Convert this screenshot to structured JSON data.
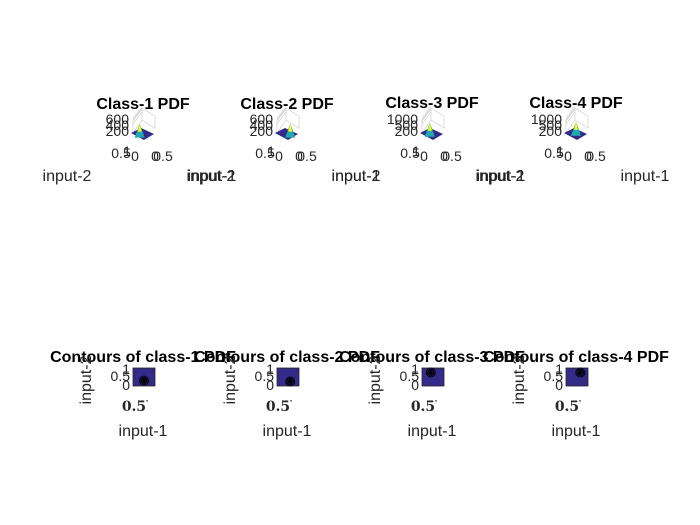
{
  "chart_data": [
    {
      "type": "surface",
      "title": "Class-1 PDF",
      "xlabel": "input-1",
      "ylabel": "input-2",
      "z_ticks": [
        "600",
        "400",
        "200"
      ],
      "x_ticks": [
        "0",
        "0.5"
      ],
      "y_ticks": [
        "0.5",
        "1",
        "0"
      ],
      "peak_location": "near-front-left",
      "colormap": "parula"
    },
    {
      "type": "surface",
      "title": "Class-2 PDF",
      "xlabel": "input-1",
      "ylabel": "input-2",
      "z_ticks": [
        "600",
        "400",
        "200"
      ],
      "x_ticks": [
        "0",
        "0.5"
      ],
      "y_ticks": [
        "0.5",
        "1",
        "0"
      ],
      "peak_location": "near-front-right",
      "colormap": "parula"
    },
    {
      "type": "surface",
      "title": "Class-3 PDF",
      "xlabel": "input-1",
      "ylabel": "input-2",
      "z_ticks": [
        "1000",
        "500",
        "200"
      ],
      "x_ticks": [
        "0",
        "0.5"
      ],
      "y_ticks": [
        "0.5",
        "1",
        "0"
      ],
      "peak_location": "center-left",
      "colormap": "parula"
    },
    {
      "type": "surface",
      "title": "Class-4 PDF",
      "xlabel": "input-1",
      "ylabel": "input-2",
      "z_ticks": [
        "1000",
        "500",
        "200"
      ],
      "x_ticks": [
        "0",
        "0.5"
      ],
      "y_ticks": [
        "0.5",
        "1",
        "0"
      ],
      "peak_location": "back-center",
      "colormap": "parula"
    },
    {
      "type": "contour",
      "title": "Contours of class-1 PDF",
      "xlabel": "input-1",
      "ylabel": "input-2",
      "x_ticks": [
        "0.5"
      ],
      "y_ticks": [
        "1",
        "0.5",
        "0"
      ],
      "xlim": [
        0,
        1
      ],
      "ylim": [
        0,
        1
      ],
      "grid": false,
      "center": [
        0.5,
        0.3
      ]
    },
    {
      "type": "contour",
      "title": "Contours of class-2 PDF",
      "xlabel": "input-1",
      "ylabel": "input-2",
      "x_ticks": [
        "0.5"
      ],
      "y_ticks": [
        "1",
        "0.5",
        "0"
      ],
      "xlim": [
        0,
        1
      ],
      "ylim": [
        0,
        1
      ],
      "grid": false,
      "center": [
        0.6,
        0.25
      ]
    },
    {
      "type": "contour",
      "title": "Contours of class-3 PDF",
      "xlabel": "input-1",
      "ylabel": "input-2",
      "x_ticks": [
        "0.5"
      ],
      "y_ticks": [
        "1",
        "0.5",
        "0"
      ],
      "xlim": [
        0,
        1
      ],
      "ylim": [
        0,
        1
      ],
      "grid": false,
      "center": [
        0.4,
        0.75
      ]
    },
    {
      "type": "contour",
      "title": "Contours of class-4 PDF",
      "xlabel": "input-1",
      "ylabel": "input-2",
      "x_ticks": [
        "0.5"
      ],
      "y_ticks": [
        "1",
        "0.5",
        "0"
      ],
      "xlim": [
        0,
        1
      ],
      "ylim": [
        0,
        1
      ],
      "grid": false,
      "center": [
        0.65,
        0.75
      ]
    }
  ],
  "colors": {
    "contour_background": "#352a87",
    "surface_low": "#352a87",
    "surface_mid": "#21a9b0",
    "surface_high": "#f9fb0e",
    "contour_lines": "#000000"
  }
}
